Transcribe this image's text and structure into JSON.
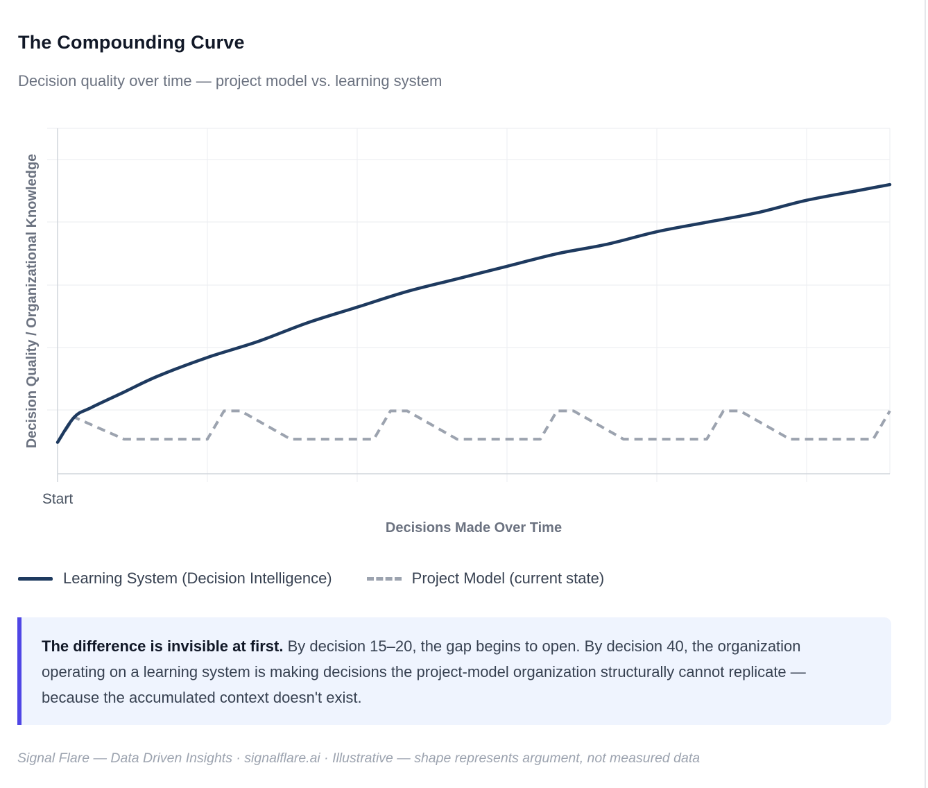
{
  "header": {
    "title": "The Compounding Curve",
    "subtitle": "Decision quality over time — project model vs. learning system"
  },
  "chart_data": {
    "type": "line",
    "title": "The Compounding Curve",
    "xlabel": "Decisions Made Over Time",
    "ylabel": "Decision Quality / Organizational Knowledge",
    "x_tick_labels": [
      "Start"
    ],
    "xlim": [
      0,
      50
    ],
    "ylim": [
      0,
      100
    ],
    "grid": true,
    "legend_position": "bottom-left",
    "series": [
      {
        "name": "Learning System (Decision Intelligence)",
        "style": "solid",
        "color": "#1e3a5f",
        "x": [
          0,
          1,
          2,
          4,
          6,
          9,
          12,
          15,
          18,
          21,
          24,
          27,
          30,
          33,
          36,
          39,
          42,
          45,
          48,
          50
        ],
        "y": [
          10,
          18,
          21,
          26,
          31,
          37,
          42,
          48,
          53,
          58,
          62,
          66,
          70,
          73,
          77,
          80,
          83,
          87,
          90,
          92
        ]
      },
      {
        "name": "Project Model (current state)",
        "style": "dashed",
        "color": "#9ca3af",
        "x": [
          0,
          1,
          4,
          9,
          10,
          11,
          14,
          19,
          20,
          21,
          24,
          29,
          30,
          31,
          34,
          39,
          40,
          41,
          44,
          49,
          50
        ],
        "y": [
          10,
          18,
          11,
          11,
          20,
          20,
          11,
          11,
          20,
          20,
          11,
          11,
          20,
          20,
          11,
          11,
          20,
          20,
          11,
          11,
          20
        ]
      }
    ]
  },
  "legend": {
    "learning_label": "Learning System (Decision Intelligence)",
    "project_label": "Project Model (current state)"
  },
  "callout": {
    "lead": "The difference is invisible at first.",
    "body": "By decision 15–20, the gap begins to open. By decision 40, the organization operating on a learning system is making decisions the project-model organization structurally cannot replicate — because the accumulated context doesn't exist."
  },
  "footer": {
    "text": "Signal Flare — Data Driven Insights · signalflare.ai · Illustrative — shape represents argument, not measured data"
  },
  "colors": {
    "learning": "#1e3a5f",
    "project": "#9ca3af",
    "accent": "#4f46e5",
    "callout_bg": "#eff4fe"
  }
}
